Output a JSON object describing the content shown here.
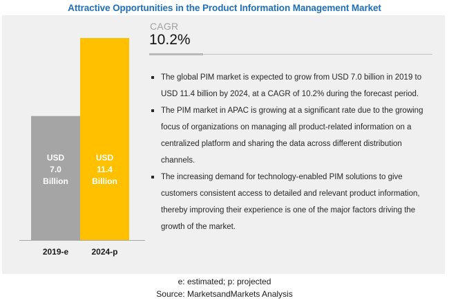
{
  "title": "Attractive Opportunities in the Product Information Management Market",
  "cagr": {
    "label": "CAGR",
    "value": "10.2%"
  },
  "bullets": [
    "The global PIM market is expected to grow from USD 7.0 billion in 2019 to USD 11.4 billion by 2024, at a CAGR of 10.2% during the forecast period.",
    "The PIM market in APAC is growing at a significant rate due to the growing focus of organizations on managing all product-related information on a centralized platform and sharing the data across different distribution channels.",
    "The increasing demand for technology-enabled PIM solutions to give customers consistent access to detailed and relevant product information, thereby improving their experience is one of the major factors driving the growth of the market."
  ],
  "footer": {
    "note": "e: estimated; p: projected",
    "source": "Source: MarketsandMarkets Analysis"
  },
  "chart_data": {
    "type": "bar",
    "title": "Attractive Opportunities in the Product Information Management Market",
    "categories": [
      "2019-e",
      "2024-p"
    ],
    "values": [
      7.0,
      11.4
    ],
    "unit": "USD Billion",
    "bar_labels": [
      [
        "USD",
        "7.0",
        "Billion"
      ],
      [
        "USD",
        "11.4",
        "Billion"
      ]
    ],
    "colors": [
      "#a5a5a5",
      "#ffc000"
    ],
    "xlabel": "",
    "ylabel": "",
    "ylim": [
      0,
      11.4
    ],
    "grid": false,
    "legend": "none"
  }
}
